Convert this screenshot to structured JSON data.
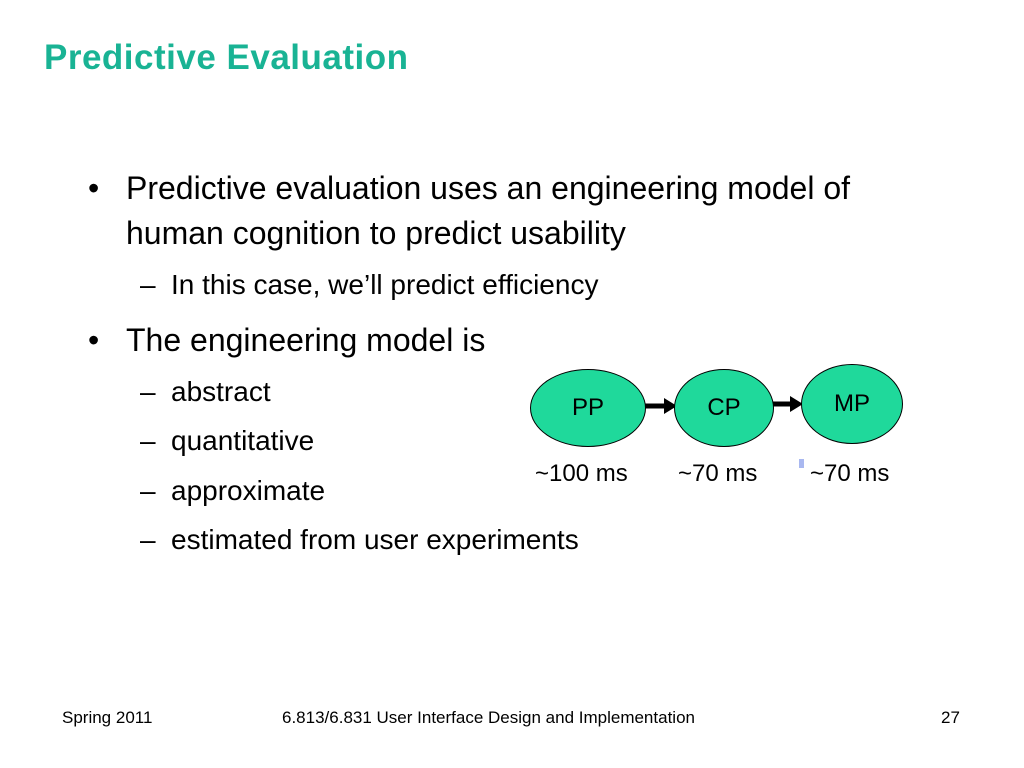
{
  "slide": {
    "title": "Predictive Evaluation",
    "bullets": [
      {
        "mark": "•",
        "text": "Predictive evaluation uses an engineering model of human cognition to predict usability",
        "subitems": [
          "In this case, we’ll predict efficiency"
        ]
      },
      {
        "mark": "•",
        "text": "The engineering model is",
        "subitems": [
          "abstract",
          "quantitative",
          "approximate",
          "estimated from user experiments"
        ]
      }
    ],
    "sub_mark": "–"
  },
  "diagram": {
    "node_color": "#1fd99b",
    "nodes": [
      {
        "label": "PP",
        "time": "~100 ms"
      },
      {
        "label": "CP",
        "time": "~70 ms"
      },
      {
        "label": "MP",
        "time": "~70 ms"
      }
    ]
  },
  "footer": {
    "left": "Spring 2011",
    "center": "6.813/6.831 User Interface Design and Implementation",
    "page": "27"
  },
  "colors": {
    "title": "#19b394",
    "node": "#1fd99b"
  }
}
